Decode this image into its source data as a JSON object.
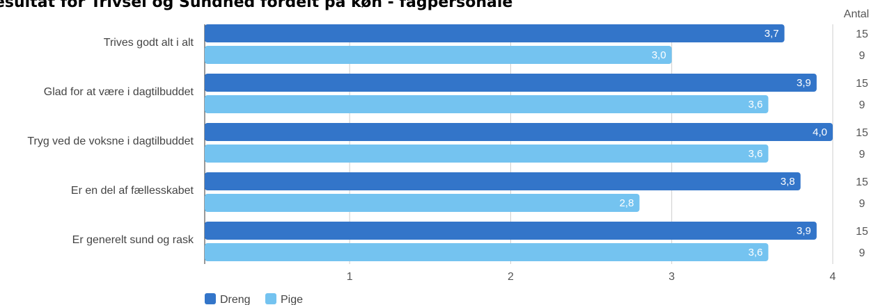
{
  "colors": {
    "dreng": "#3375c9",
    "pige": "#74c3f0",
    "grid": "#cccccc",
    "axis": "#333333"
  },
  "chart_data": {
    "type": "bar",
    "orientation": "horizontal",
    "title": "esultat for Trivsel og Sundhed fordelt på køn - fagpersonale",
    "categories": [
      "Trives godt alt i alt",
      "Glad for at være i dagtilbuddet",
      "Tryg ved de voksne i dagtilbuddet",
      "Er en del af fællesskabet",
      "Er generelt sund og rask"
    ],
    "series": [
      {
        "name": "Dreng",
        "values": [
          3.7,
          3.9,
          4.0,
          3.8,
          3.9
        ],
        "labels": [
          "3,7",
          "3,9",
          "4,0",
          "3,8",
          "3,9"
        ],
        "counts": [
          "15",
          "15",
          "15",
          "15",
          "15"
        ]
      },
      {
        "name": "Pige",
        "values": [
          3.0,
          3.6,
          3.6,
          2.8,
          3.6
        ],
        "labels": [
          "3,0",
          "3,6",
          "3,6",
          "2,8",
          "3,6"
        ],
        "counts": [
          "9",
          "9",
          "9",
          "9",
          "9"
        ]
      }
    ],
    "xlim": [
      0.1,
      4
    ],
    "xticks": [
      1,
      2,
      3,
      4
    ],
    "count_header": "Antal",
    "grid": true,
    "legend": "bottom-left"
  }
}
